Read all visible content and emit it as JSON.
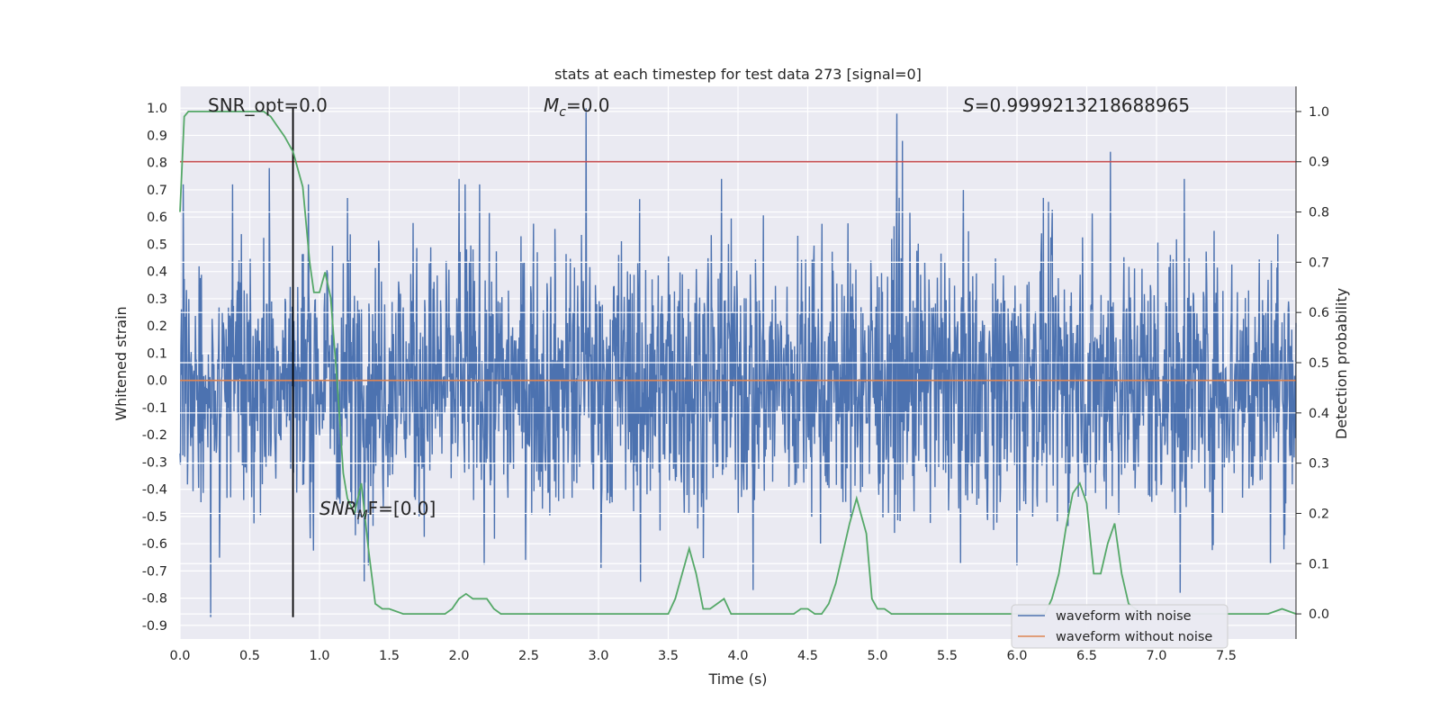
{
  "chart_data": {
    "type": "line",
    "title": "stats at each timestep for test data 273 [signal=0]",
    "xlabel": "Time (s)",
    "ylabel_left": "Whitened strain",
    "ylabel_right": "Detection probability",
    "xlim": [
      0.0,
      8.0
    ],
    "ylim_left": [
      -0.95,
      1.08
    ],
    "ylim_right": [
      -0.05,
      1.05
    ],
    "x_ticks": [
      "0.0",
      "0.5",
      "1.0",
      "1.5",
      "2.0",
      "2.5",
      "3.0",
      "3.5",
      "4.0",
      "4.5",
      "5.0",
      "5.5",
      "6.0",
      "6.5",
      "7.0",
      "7.5"
    ],
    "y_left_ticks": [
      "-0.9",
      "-0.8",
      "-0.7",
      "-0.6",
      "-0.5",
      "-0.4",
      "-0.3",
      "-0.2",
      "-0.1",
      "0.0",
      "0.1",
      "0.2",
      "0.3",
      "0.4",
      "0.5",
      "0.6",
      "0.7",
      "0.8",
      "0.9",
      "1.0"
    ],
    "y_right_ticks": [
      "0.0",
      "0.1",
      "0.2",
      "0.3",
      "0.4",
      "0.5",
      "0.6",
      "0.7",
      "0.8",
      "0.9",
      "1.0"
    ],
    "grid": true,
    "legend_position": "lower-right",
    "annotations": {
      "snr_opt": "SNR_opt=0.0",
      "mc_prefix": "M",
      "mc_sub": "c",
      "mc_suffix": "=0.0",
      "s_prefix": "S",
      "s_suffix": "=0.9999213218688965",
      "snr_mf_prefix": "SNR",
      "snr_mf_sub": "M",
      "snr_mf_suffix": "F=[0.0]"
    },
    "threshold_right": 0.9,
    "vertical_line_x": 0.81,
    "series": [
      {
        "name": "waveform with noise",
        "color": "#4c72b0",
        "style": "dense noise, approx. range -0.87 to 1.0",
        "spikes": [
          {
            "x": 0.22,
            "y": -0.87
          },
          {
            "x": 0.64,
            "y": 0.78
          },
          {
            "x": 1.2,
            "y": 0.67
          },
          {
            "x": 1.35,
            "y": -0.68
          },
          {
            "x": 2.0,
            "y": 0.74
          },
          {
            "x": 2.91,
            "y": 1.0
          },
          {
            "x": 3.3,
            "y": -0.74
          },
          {
            "x": 3.88,
            "y": 0.74
          },
          {
            "x": 4.11,
            "y": -0.77
          },
          {
            "x": 5.14,
            "y": 0.98
          },
          {
            "x": 5.18,
            "y": 0.88
          },
          {
            "x": 6.0,
            "y": -0.68
          },
          {
            "x": 6.67,
            "y": 0.84
          },
          {
            "x": 7.17,
            "y": -0.78
          },
          {
            "x": 7.2,
            "y": 0.74
          }
        ]
      },
      {
        "name": "waveform without noise",
        "color": "#dd8452",
        "x": [
          0.0,
          8.0
        ],
        "y": [
          0.0,
          0.0
        ]
      },
      {
        "color": "#55a868",
        "axis": "right",
        "x": [
          0.0,
          0.03,
          0.06,
          0.1,
          0.15,
          0.2,
          0.3,
          0.4,
          0.5,
          0.55,
          0.6,
          0.65,
          0.7,
          0.75,
          0.81,
          0.88,
          0.93,
          0.96,
          1.0,
          1.04,
          1.08,
          1.13,
          1.17,
          1.2,
          1.25,
          1.3,
          1.35,
          1.4,
          1.45,
          1.5,
          1.6,
          1.7,
          1.8,
          1.9,
          1.95,
          2.0,
          2.05,
          2.1,
          2.15,
          2.2,
          2.25,
          2.3,
          2.35,
          2.4,
          2.5,
          2.6,
          2.7,
          2.8,
          2.9,
          3.0,
          3.1,
          3.2,
          3.3,
          3.4,
          3.5,
          3.55,
          3.6,
          3.65,
          3.7,
          3.75,
          3.8,
          3.85,
          3.9,
          3.95,
          4.0,
          4.05,
          4.1,
          4.2,
          4.3,
          4.4,
          4.45,
          4.5,
          4.55,
          4.6,
          4.65,
          4.7,
          4.75,
          4.8,
          4.85,
          4.88,
          4.92,
          4.96,
          5.0,
          5.05,
          5.1,
          5.2,
          5.3,
          5.4,
          5.5,
          5.6,
          5.7,
          5.8,
          5.9,
          6.0,
          6.1,
          6.2,
          6.25,
          6.3,
          6.35,
          6.4,
          6.45,
          6.5,
          6.55,
          6.6,
          6.65,
          6.7,
          6.75,
          6.8,
          6.85,
          6.9,
          7.0,
          7.1,
          7.2,
          7.3,
          7.4,
          7.5,
          7.6,
          7.7,
          7.8,
          7.9,
          8.0
        ],
        "y": [
          0.8,
          0.99,
          1.0,
          1.0,
          1.0,
          1.0,
          1.0,
          1.0,
          1.0,
          1.0,
          1.0,
          0.99,
          0.97,
          0.95,
          0.92,
          0.85,
          0.7,
          0.64,
          0.64,
          0.68,
          0.63,
          0.45,
          0.28,
          0.23,
          0.2,
          0.26,
          0.13,
          0.02,
          0.01,
          0.01,
          0.0,
          0.0,
          0.0,
          0.0,
          0.01,
          0.03,
          0.04,
          0.03,
          0.03,
          0.03,
          0.01,
          0.0,
          0.0,
          0.0,
          0.0,
          0.0,
          0.0,
          0.0,
          0.0,
          0.0,
          0.0,
          0.0,
          0.0,
          0.0,
          0.0,
          0.03,
          0.08,
          0.13,
          0.08,
          0.01,
          0.01,
          0.02,
          0.03,
          0.0,
          0.0,
          0.0,
          0.0,
          0.0,
          0.0,
          0.0,
          0.01,
          0.01,
          0.0,
          0.0,
          0.02,
          0.06,
          0.12,
          0.18,
          0.23,
          0.2,
          0.16,
          0.03,
          0.01,
          0.01,
          0.0,
          0.0,
          0.0,
          0.0,
          0.0,
          0.0,
          0.0,
          0.0,
          0.0,
          0.0,
          0.0,
          0.0,
          0.03,
          0.08,
          0.17,
          0.24,
          0.26,
          0.22,
          0.08,
          0.08,
          0.14,
          0.18,
          0.08,
          0.02,
          0.01,
          0.0,
          0.0,
          0.0,
          0.0,
          0.0,
          0.0,
          0.0,
          0.0,
          0.0,
          0.0,
          0.01,
          0.0
        ]
      }
    ]
  }
}
